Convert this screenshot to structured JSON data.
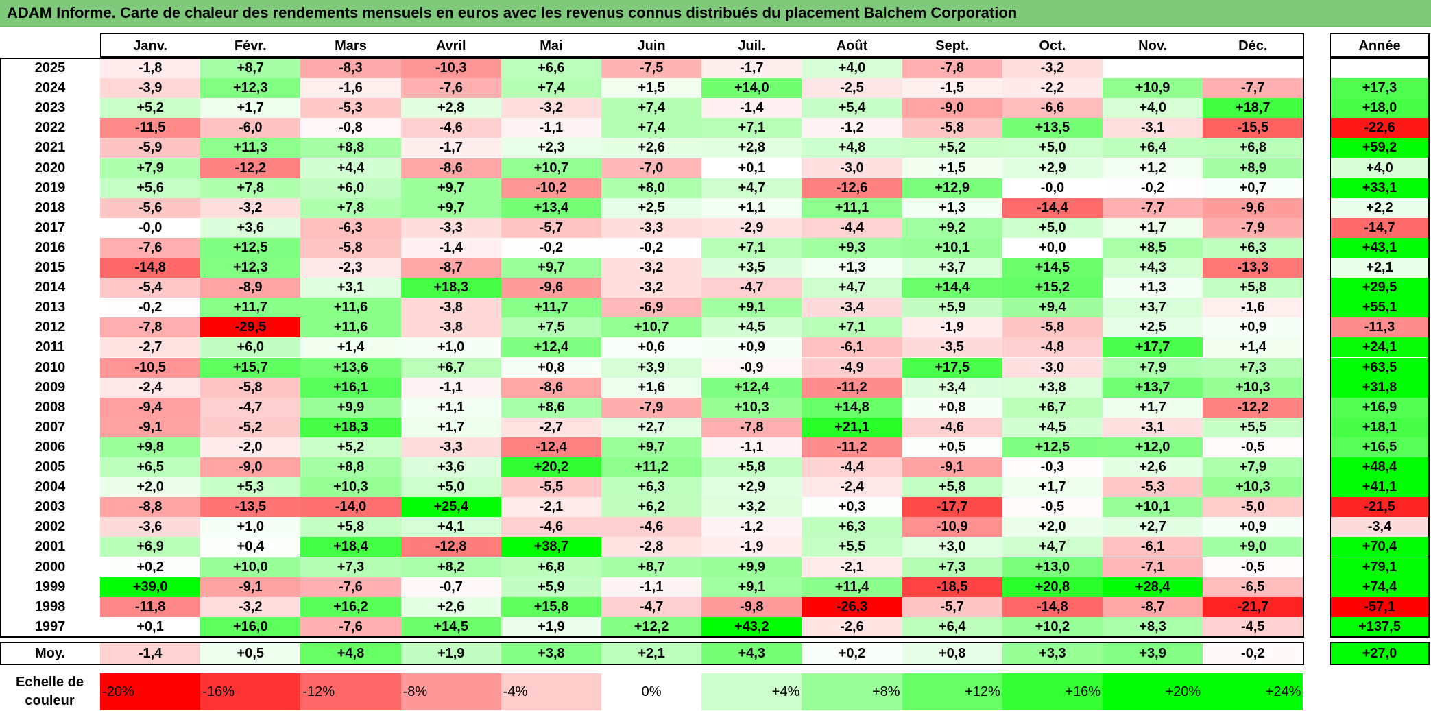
{
  "title": "ADAM Informe. Carte de chaleur des rendements mensuels en euros avec les revenus connus distribués du placement Balchem Corporation",
  "chart_data": {
    "type": "heatmap",
    "months": [
      "Janv.",
      "Févr.",
      "Mars",
      "Avril",
      "Mai",
      "Juin",
      "Juil.",
      "Août",
      "Sept.",
      "Oct.",
      "Nov.",
      "Déc."
    ],
    "year_header": "Année",
    "rows": [
      {
        "year": "2025",
        "values": [
          "-1,8",
          "+8,7",
          "-8,3",
          "-10,3",
          "+6,6",
          "-7,5",
          "-1,7",
          "+4,0",
          "-7,8",
          "-3,2",
          "",
          ""
        ],
        "annual": ""
      },
      {
        "year": "2024",
        "values": [
          "-3,9",
          "+12,3",
          "-1,6",
          "-7,6",
          "+7,4",
          "+1,5",
          "+14,0",
          "-2,5",
          "-1,5",
          "-2,2",
          "+10,9",
          "-7,7"
        ],
        "annual": "+17,3"
      },
      {
        "year": "2023",
        "values": [
          "+5,2",
          "+1,7",
          "-5,3",
          "+2,8",
          "-3,2",
          "+7,4",
          "-1,4",
          "+5,4",
          "-9,0",
          "-6,6",
          "+4,0",
          "+18,7"
        ],
        "annual": "+18,0"
      },
      {
        "year": "2022",
        "values": [
          "-11,5",
          "-6,0",
          "-0,8",
          "-4,6",
          "-1,1",
          "+7,4",
          "+7,1",
          "-1,2",
          "-5,8",
          "+13,5",
          "-3,1",
          "-15,5"
        ],
        "annual": "-22,6"
      },
      {
        "year": "2021",
        "values": [
          "-5,9",
          "+11,3",
          "+8,8",
          "-1,7",
          "+2,3",
          "+2,6",
          "+2,8",
          "+4,8",
          "+5,2",
          "+5,0",
          "+6,4",
          "+6,8"
        ],
        "annual": "+59,2"
      },
      {
        "year": "2020",
        "values": [
          "+7,9",
          "-12,2",
          "+4,4",
          "-8,6",
          "+10,7",
          "-7,0",
          "+0,1",
          "-3,0",
          "+1,5",
          "+2,9",
          "+1,2",
          "+8,9"
        ],
        "annual": "+4,0"
      },
      {
        "year": "2019",
        "values": [
          "+5,6",
          "+7,8",
          "+6,0",
          "+9,7",
          "-10,2",
          "+8,0",
          "+4,7",
          "-12,6",
          "+12,9",
          "-0,0",
          "-0,2",
          "+0,7"
        ],
        "annual": "+33,1"
      },
      {
        "year": "2018",
        "values": [
          "-5,6",
          "-3,2",
          "+7,8",
          "+9,7",
          "+13,4",
          "+2,5",
          "+1,1",
          "+11,1",
          "+1,3",
          "-14,4",
          "-7,7",
          "-9,6"
        ],
        "annual": "+2,2"
      },
      {
        "year": "2017",
        "values": [
          "-0,0",
          "+3,6",
          "-6,3",
          "-3,3",
          "-5,7",
          "-3,3",
          "-2,9",
          "-4,4",
          "+9,2",
          "+5,0",
          "+1,7",
          "-7,9"
        ],
        "annual": "-14,7"
      },
      {
        "year": "2016",
        "values": [
          "-7,6",
          "+12,5",
          "-5,8",
          "-1,4",
          "-0,2",
          "-0,2",
          "+7,1",
          "+9,3",
          "+10,1",
          "+0,0",
          "+8,5",
          "+6,3"
        ],
        "annual": "+43,1"
      },
      {
        "year": "2015",
        "values": [
          "-14,8",
          "+12,3",
          "-2,3",
          "-8,7",
          "+9,7",
          "-3,2",
          "+3,5",
          "+1,3",
          "+3,7",
          "+14,5",
          "+4,3",
          "-13,3"
        ],
        "annual": "+2,1"
      },
      {
        "year": "2014",
        "values": [
          "-5,4",
          "-8,9",
          "+3,1",
          "+18,3",
          "-9,6",
          "-3,2",
          "-4,7",
          "+4,7",
          "+14,4",
          "+15,2",
          "+1,3",
          "+5,8"
        ],
        "annual": "+29,5"
      },
      {
        "year": "2013",
        "values": [
          "-0,2",
          "+11,7",
          "+11,6",
          "-3,8",
          "+11,7",
          "-6,9",
          "+9,1",
          "-3,4",
          "+5,9",
          "+9,4",
          "+3,7",
          "-1,6"
        ],
        "annual": "+55,1"
      },
      {
        "year": "2012",
        "values": [
          "-7,8",
          "-29,5",
          "+11,6",
          "-3,8",
          "+7,5",
          "+10,7",
          "+4,5",
          "+7,1",
          "-1,9",
          "-5,8",
          "+2,5",
          "+0,9"
        ],
        "annual": "-11,3"
      },
      {
        "year": "2011",
        "values": [
          "-2,7",
          "+6,0",
          "+1,4",
          "+1,0",
          "+12,4",
          "+0,6",
          "+0,9",
          "-6,1",
          "-3,5",
          "-4,8",
          "+17,7",
          "+1,4"
        ],
        "annual": "+24,1"
      },
      {
        "year": "2010",
        "values": [
          "-10,5",
          "+15,7",
          "+13,6",
          "+6,7",
          "+0,8",
          "+3,9",
          "-0,9",
          "-4,9",
          "+17,5",
          "-3,0",
          "+7,9",
          "+7,3"
        ],
        "annual": "+63,5"
      },
      {
        "year": "2009",
        "values": [
          "-2,4",
          "-5,8",
          "+16,1",
          "-1,1",
          "-8,6",
          "+1,6",
          "+12,4",
          "-11,2",
          "+3,4",
          "+3,8",
          "+13,7",
          "+10,3"
        ],
        "annual": "+31,8"
      },
      {
        "year": "2008",
        "values": [
          "-9,4",
          "-4,7",
          "+9,9",
          "+1,1",
          "+8,6",
          "-7,9",
          "+10,3",
          "+14,8",
          "+0,8",
          "+6,7",
          "+1,7",
          "-12,2"
        ],
        "annual": "+16,9"
      },
      {
        "year": "2007",
        "values": [
          "-9,1",
          "-5,2",
          "+18,3",
          "+1,7",
          "-2,7",
          "+2,7",
          "-7,8",
          "+21,1",
          "-4,6",
          "+4,5",
          "-3,1",
          "+5,5"
        ],
        "annual": "+18,1"
      },
      {
        "year": "2006",
        "values": [
          "+9,8",
          "-2,0",
          "+5,2",
          "-3,3",
          "-12,4",
          "+9,7",
          "-1,1",
          "-11,2",
          "+0,5",
          "+12,5",
          "+12,0",
          "-0,5"
        ],
        "annual": "+16,5"
      },
      {
        "year": "2005",
        "values": [
          "+6,5",
          "-9,0",
          "+8,8",
          "+3,6",
          "+20,2",
          "+11,2",
          "+5,8",
          "-4,4",
          "-9,1",
          "-0,3",
          "+2,6",
          "+7,9"
        ],
        "annual": "+48,4"
      },
      {
        "year": "2004",
        "values": [
          "+2,0",
          "+5,3",
          "+10,3",
          "+5,0",
          "-5,5",
          "+6,3",
          "+2,9",
          "-2,4",
          "+5,8",
          "+1,7",
          "-5,3",
          "+10,3"
        ],
        "annual": "+41,1"
      },
      {
        "year": "2003",
        "values": [
          "-8,8",
          "-13,5",
          "-14,0",
          "+25,4",
          "-2,1",
          "+6,2",
          "+3,2",
          "+0,3",
          "-17,7",
          "-0,5",
          "+10,1",
          "-5,0"
        ],
        "annual": "-21,5"
      },
      {
        "year": "2002",
        "values": [
          "-3,6",
          "+1,0",
          "+5,8",
          "+4,1",
          "-4,6",
          "-4,6",
          "-1,2",
          "+6,3",
          "-10,9",
          "+2,0",
          "+2,7",
          "+0,9"
        ],
        "annual": "-3,4"
      },
      {
        "year": "2001",
        "values": [
          "+6,9",
          "+0,4",
          "+18,4",
          "-12,8",
          "+38,7",
          "-2,8",
          "-1,9",
          "+5,5",
          "+3,0",
          "+4,7",
          "-6,1",
          "+9,0"
        ],
        "annual": "+70,4"
      },
      {
        "year": "2000",
        "values": [
          "+0,2",
          "+10,0",
          "+7,3",
          "+8,2",
          "+6,8",
          "+8,7",
          "+9,9",
          "-2,1",
          "+7,3",
          "+13,0",
          "-7,1",
          "-0,5"
        ],
        "annual": "+79,1"
      },
      {
        "year": "1999",
        "values": [
          "+39,0",
          "-9,1",
          "-7,6",
          "-0,7",
          "+5,9",
          "-1,1",
          "+9,1",
          "+11,4",
          "-18,5",
          "+20,8",
          "+28,4",
          "-6,5"
        ],
        "annual": "+74,4"
      },
      {
        "year": "1998",
        "values": [
          "-11,8",
          "-3,2",
          "+16,2",
          "+2,6",
          "+15,8",
          "-4,7",
          "-9,8",
          "-26,3",
          "-5,7",
          "-14,8",
          "-8,7",
          "-21,7"
        ],
        "annual": "-57,1"
      },
      {
        "year": "1997",
        "values": [
          "+0,1",
          "+16,0",
          "-7,6",
          "+14,5",
          "+1,9",
          "+12,2",
          "+43,2",
          "-2,6",
          "+6,4",
          "+10,2",
          "+8,3",
          "-4,5"
        ],
        "annual": "+137,5"
      }
    ],
    "average": {
      "label": "Moy.",
      "values": [
        "-1,4",
        "+0,5",
        "+4,8",
        "+1,9",
        "+3,8",
        "+2,1",
        "+4,3",
        "+0,2",
        "+0,8",
        "+3,3",
        "+3,9",
        "-0,2"
      ],
      "annual": "+27,0"
    },
    "scale": {
      "label": "Echelle de couleur",
      "items": [
        "-20%",
        "-16%",
        "-12%",
        "-8%",
        "-4%",
        "0%",
        "+4%",
        "+8%",
        "+12%",
        "+16%",
        "+20%",
        "+24%"
      ]
    },
    "colors": {
      "negative_max": "#ff0000",
      "positive_max": "#00ff00",
      "neutral": "#ffffff",
      "title_bg": "#7fc97b"
    }
  }
}
